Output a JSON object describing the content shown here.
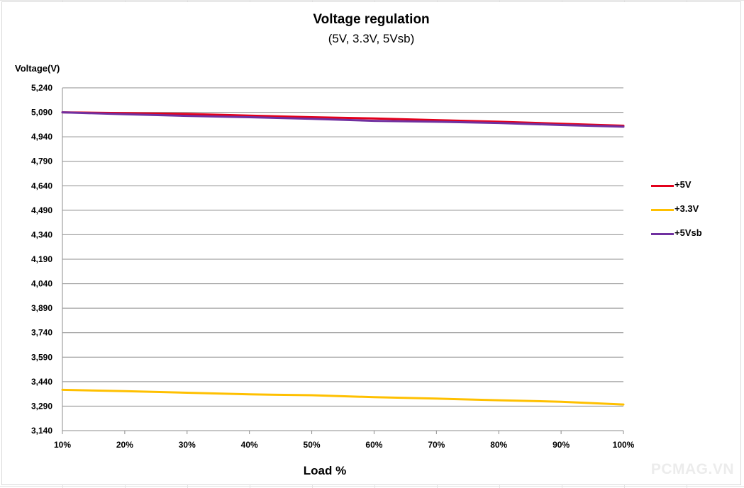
{
  "chart_data": {
    "type": "line",
    "title": "Voltage regulation",
    "subtitle": "(5V, 3.3V, 5Vsb)",
    "ylabel": "Voltage(V)",
    "xlabel": "Load %",
    "categories": [
      "10%",
      "20%",
      "30%",
      "40%",
      "50%",
      "60%",
      "70%",
      "80%",
      "90%",
      "100%"
    ],
    "yticks": [
      "5,240",
      "5,090",
      "4,940",
      "4,790",
      "4,640",
      "4,490",
      "4,340",
      "4,190",
      "4,040",
      "3,890",
      "3,740",
      "3,590",
      "3,440",
      "3,290",
      "3,140"
    ],
    "ylim": [
      3.14,
      5.24
    ],
    "grid": true,
    "legend_position": "right",
    "series": [
      {
        "name": "+5V",
        "color": "#e3001b",
        "values": [
          5.09,
          5.085,
          5.08,
          5.07,
          5.06,
          5.052,
          5.042,
          5.032,
          5.02,
          5.008
        ]
      },
      {
        "name": "+3.3V",
        "color": "#ffc000",
        "values": [
          3.39,
          3.382,
          3.372,
          3.362,
          3.357,
          3.345,
          3.336,
          3.326,
          3.317,
          3.3
        ]
      },
      {
        "name": "+5Vsb",
        "color": "#7030a0",
        "values": [
          5.09,
          5.078,
          5.068,
          5.06,
          5.05,
          5.038,
          5.032,
          5.025,
          5.012,
          5.002
        ]
      }
    ]
  },
  "watermark": "PCMAG.VN"
}
